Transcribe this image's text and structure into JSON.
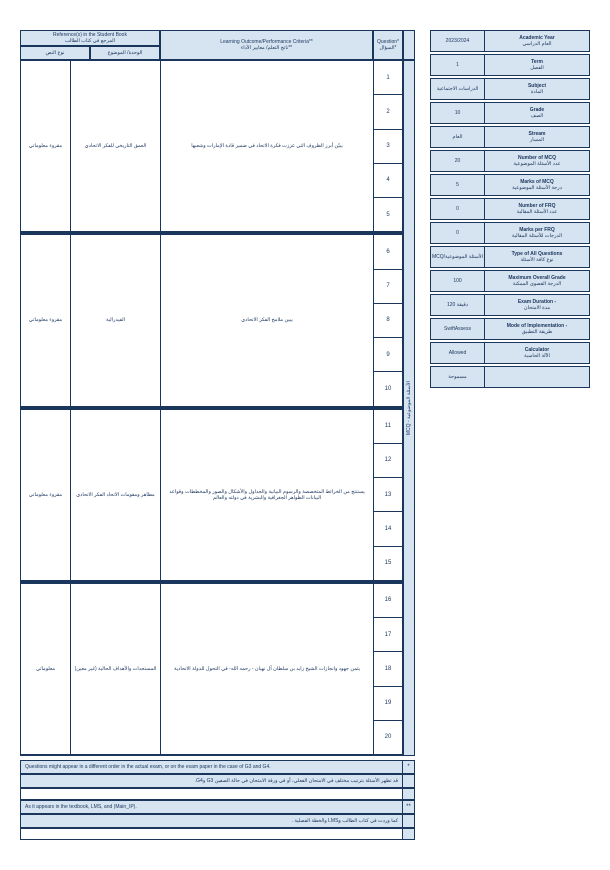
{
  "meta": [
    {
      "val": "2023/2024",
      "en": "Academic Year",
      "ar": "العام الدراسي"
    },
    {
      "val": "1",
      "en": "Term",
      "ar": "الفصل"
    },
    {
      "val": "الدراسات الاجتماعية",
      "en": "Subject",
      "ar": "المادة"
    },
    {
      "val": "10",
      "en": "Grade",
      "ar": "الصف"
    },
    {
      "val": "العام",
      "en": "Stream",
      "ar": "المسار"
    },
    {
      "val": "20",
      "en": "Number of MCQ",
      "ar": "عدد الأسئلة الموضوعية"
    },
    {
      "val": "5",
      "en": "Marks of MCQ",
      "ar": "درجة الأسئلة الموضوعية"
    },
    {
      "val": "0",
      "en": "Number of FRQ",
      "ar": "عدد الأسئلة المقالية"
    },
    {
      "val": "0",
      "en": "Marks per FRQ",
      "ar": "الدرجات للأسئلة المقالية"
    },
    {
      "val": "MCQ/الأسئلة الموضوعية",
      "en": "Type of All Questions",
      "ar": "نوع كافة الأسئلة"
    },
    {
      "val": "100",
      "en": "Maximum Overall Grade",
      "ar": "الدرجة القصوى الممكنة"
    },
    {
      "val": "دقيقة 120",
      "en": "Exam Duration -",
      "ar": "مدة الامتحان"
    },
    {
      "val": "SwiftAssess",
      "en": "Mode of Implementation -",
      "ar": "طريقة التطبيق"
    },
    {
      "val": "Allowed",
      "en": "Calculator",
      "ar": "الآلة الحاسبة"
    },
    {
      "val": "مسموحة",
      "en": "",
      "ar": ""
    }
  ],
  "headers": {
    "ref_en": "Reference(s) in the Student Book",
    "ref_ar": "المرجع في كتاب الطالب",
    "sub1": "نوع النص",
    "sub2": "الوحدة/ الموضوع",
    "lo_en": "Learning Outcome/Performance Criteria**",
    "lo_ar": "ناتج التعلم/ معايير الأداء**",
    "q_en": "Question*",
    "q_ar": "السؤال*",
    "side": "الأسئلة الموضوعية - MCQ"
  },
  "groups": [
    {
      "text": "مقروء معلوماتي",
      "topic": "العمق التاريخي للفكر الاتحادي",
      "lo": "يبيّن أبرز الظروف التي عززت فكرة الاتحاد في ضمير قادة الإمارات وشعبها",
      "nums": [
        "1",
        "2",
        "3",
        "4",
        "5"
      ]
    },
    {
      "text": "مقروء معلوماتي",
      "topic": "الفيدرالية",
      "lo": "يبين ملامح الفكر الاتحادي",
      "nums": [
        "6",
        "7",
        "8",
        "9",
        "10"
      ]
    },
    {
      "text": "مقروء معلوماتي",
      "topic": "مظاهر ومقومات الاتحاد الفكر الاتحادي",
      "lo": "يستنتج من الخرائط المتخصصة والرسوم البيانية والجداول والأشكال والصور والمخططات وقواعد البيانات الظواهر الجغرافية والبشرية في دولته والعالم",
      "nums": [
        "11",
        "12",
        "13",
        "14",
        "15"
      ]
    },
    {
      "text": "معلوماتي",
      "topic": "المستجدات والأهداف الحالية (غير معين)",
      "lo": "يثمن جهود وانجازات الشيخ زايد بن سلطان آل نهيان - رحمه الله- في التحول للدولة الاتحادية",
      "nums": [
        "16",
        "17",
        "18",
        "19",
        "20"
      ]
    }
  ],
  "notes": [
    {
      "en": "Questions might appear in a different order in the actual exam, or on the exam paper in the case of G3 and G4.",
      "ar": "قد تظهر الأسئلة بترتيب مختلف في الامتحان الفعلي، أو في ورقة الامتحان في حالة الصفين G3 وG4.",
      "mark": "*"
    },
    {
      "en": "As it appears in the textbook, LMS, and  (Main_IP).",
      "ar": "كما وردت في كتاب الطالب وLMS والخطة الفصلية .",
      "mark": "**"
    }
  ]
}
